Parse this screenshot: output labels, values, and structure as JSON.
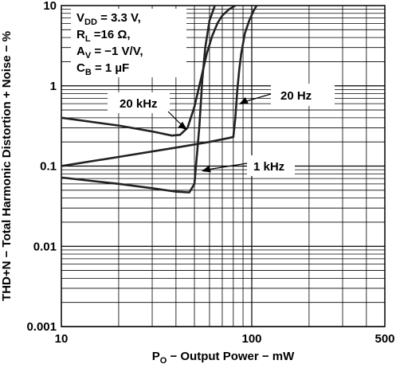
{
  "chart_data": {
    "type": "line",
    "title": "",
    "xlabel": {
      "main": "P",
      "sub": "O",
      "rest": " − Output Power − mW"
    },
    "ylabel": "THD+N − Total Harmonic Distortion + Noise − %",
    "x_scale": "log",
    "y_scale": "log",
    "xlim": [
      10,
      500
    ],
    "ylim": [
      0.001,
      10
    ],
    "grid": true,
    "x_ticks": [
      {
        "value": 10,
        "label": "10"
      },
      {
        "value": 100,
        "label": "100"
      },
      {
        "value": 500,
        "label": "500"
      }
    ],
    "y_ticks": [
      {
        "value": 10,
        "label": "10"
      },
      {
        "value": 1,
        "label": "1"
      },
      {
        "value": 0.1,
        "label": "0.1"
      },
      {
        "value": 0.01,
        "label": "0.01"
      },
      {
        "value": 0.001,
        "label": "0.001"
      }
    ],
    "conditions": [
      {
        "main": "V",
        "sub": "DD",
        "rest": " = 3.3 V,"
      },
      {
        "main": "R",
        "sub": "L",
        "rest": " =16 Ω,"
      },
      {
        "main": "A",
        "sub": "V",
        "rest": " = −1 V/V,"
      },
      {
        "main": "C",
        "sub": "B",
        "rest": " = 1 µF"
      }
    ],
    "series": [
      {
        "name": "20 kHz",
        "x": [
          10,
          20,
          30,
          38,
          42,
          46,
          50,
          54,
          58,
          62,
          66,
          70,
          76,
          82
        ],
        "y": [
          0.4,
          0.32,
          0.27,
          0.24,
          0.245,
          0.3,
          0.55,
          1.2,
          2.5,
          4.2,
          6.0,
          7.5,
          9.0,
          10
        ]
      },
      {
        "name": "20 Hz",
        "x": [
          10,
          20,
          40,
          60,
          80,
          82,
          84,
          86,
          88,
          92,
          97,
          102,
          106
        ],
        "y": [
          0.1,
          0.13,
          0.17,
          0.2,
          0.23,
          0.4,
          0.9,
          1.6,
          2.5,
          4.5,
          6.5,
          8.5,
          10
        ]
      },
      {
        "name": "1 kHz",
        "x": [
          10,
          20,
          30,
          40,
          47,
          50,
          53,
          55,
          57,
          60,
          64
        ],
        "y": [
          0.072,
          0.06,
          0.053,
          0.048,
          0.047,
          0.06,
          0.3,
          1.2,
          3.0,
          6.5,
          10
        ]
      }
    ],
    "annotations": [
      {
        "text": "20 kHz",
        "series": "20 kHz"
      },
      {
        "text": "20 Hz",
        "series": "20 Hz"
      },
      {
        "text": "1 kHz",
        "series": "1 kHz"
      }
    ]
  }
}
